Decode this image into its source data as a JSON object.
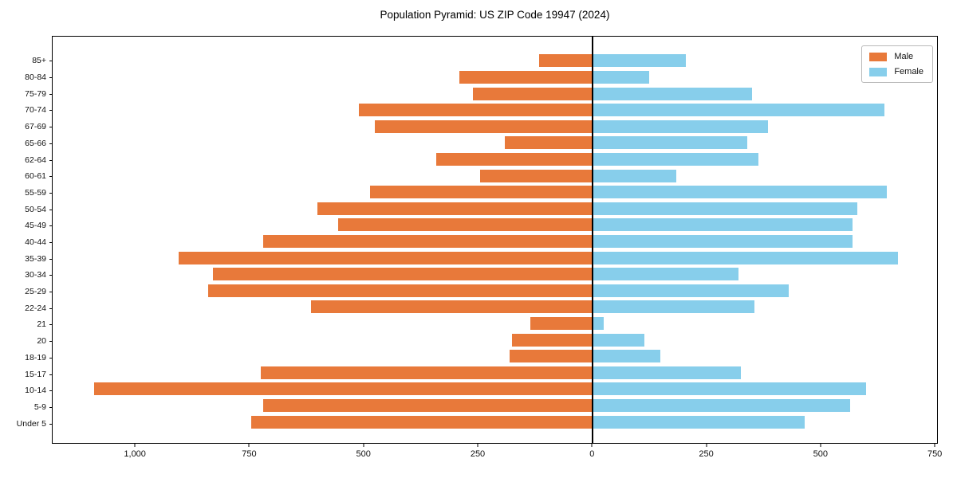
{
  "chart_data": {
    "type": "bar",
    "variant": "population-pyramid",
    "orientation": "horizontal",
    "title": "Population Pyramid: US ZIP Code 19947 (2024)",
    "categories": [
      "85+",
      "80-84",
      "75-79",
      "70-74",
      "67-69",
      "65-66",
      "62-64",
      "60-61",
      "55-59",
      "50-54",
      "45-49",
      "40-44",
      "35-39",
      "30-34",
      "25-29",
      "22-24",
      "21",
      "20",
      "18-19",
      "15-17",
      "10-14",
      "5-9",
      "Under 5"
    ],
    "series": [
      {
        "name": "Male",
        "side": "left",
        "color": "#E8793A",
        "values": [
          115,
          290,
          260,
          510,
          475,
          190,
          340,
          245,
          485,
          600,
          555,
          720,
          905,
          830,
          840,
          615,
          135,
          175,
          180,
          725,
          1090,
          720,
          745
        ]
      },
      {
        "name": "Female",
        "side": "right",
        "color": "#87CEEB",
        "values": [
          205,
          125,
          350,
          640,
          385,
          340,
          365,
          185,
          645,
          580,
          570,
          570,
          670,
          320,
          430,
          355,
          25,
          115,
          150,
          325,
          600,
          565,
          465
        ]
      }
    ],
    "x_axis": {
      "min": -1180,
      "max": 755,
      "tick_values": [
        -1000,
        -750,
        -500,
        -250,
        0,
        250,
        500,
        750
      ],
      "tick_labels": [
        "1,000",
        "750",
        "500",
        "250",
        "0",
        "250",
        "500",
        "750"
      ]
    },
    "y_axis": {
      "label": "",
      "categories_top_to_bottom": true
    },
    "legend": {
      "position": "upper-right",
      "entries": [
        "Male",
        "Female"
      ]
    },
    "zero_line_color": "#000000",
    "grid": false,
    "background_color": "#ffffff"
  }
}
